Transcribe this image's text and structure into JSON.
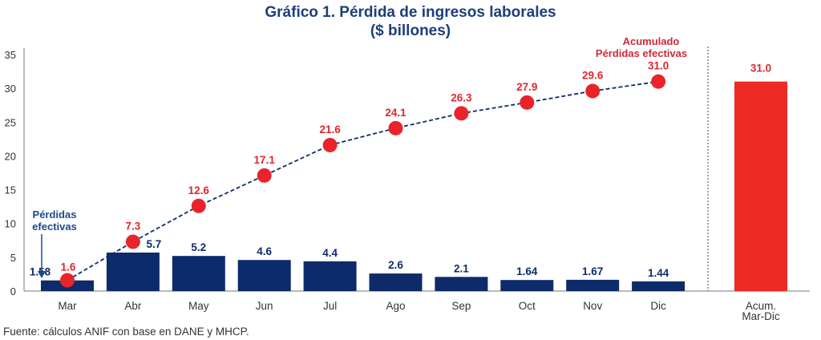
{
  "chart_data": {
    "type": "bar",
    "title": "Gráfico 1. Pérdida de ingresos laborales",
    "subtitle": "($ billones)",
    "categories": [
      "Mar",
      "Abr",
      "May",
      "Jun",
      "Jul",
      "Ago",
      "Sep",
      "Oct",
      "Nov",
      "Dic"
    ],
    "bar_series": {
      "name": "Pérdidas efectivas",
      "values": [
        1.58,
        5.7,
        5.2,
        4.6,
        4.4,
        2.6,
        2.1,
        1.64,
        1.67,
        1.44
      ],
      "labels": [
        "1.58",
        "5.7",
        "5.2",
        "4.6",
        "4.4",
        "2.6",
        "2.1",
        "1.64",
        "1.67",
        "1.44"
      ],
      "color": "#0d2b6b"
    },
    "line_series": {
      "name": "Acumulado Pérdidas efectivas",
      "values": [
        1.6,
        7.3,
        12.6,
        17.1,
        21.6,
        24.1,
        26.3,
        27.9,
        29.6,
        31.0
      ],
      "labels": [
        "1.6",
        "7.3",
        "12.6",
        "17.1",
        "21.6",
        "24.1",
        "26.3",
        "27.9",
        "29.6",
        "31.0"
      ],
      "color": "#e8242a",
      "style": "dashed line with circle markers"
    },
    "total_bar": {
      "category": [
        "Acum.",
        "Mar-Dic"
      ],
      "value": 31.0,
      "label": "31.0",
      "color": "#ee2a24"
    },
    "annotations": {
      "bars": [
        "Pérdidas",
        "efectivas"
      ],
      "line": [
        "Acumulado",
        "Pérdidas efectivas"
      ]
    },
    "ylim": [
      0,
      35
    ],
    "yticks": [
      "0",
      "5",
      "10",
      "15",
      "20",
      "25",
      "30",
      "35"
    ],
    "grid": false,
    "source": "Fuente: cálculos ANIF con base en DANE y MHCP."
  }
}
